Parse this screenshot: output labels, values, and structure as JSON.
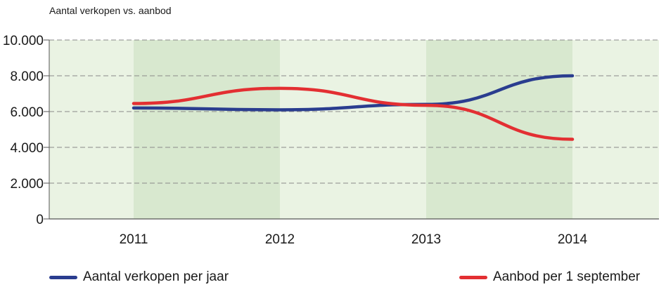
{
  "chart_data": {
    "type": "line",
    "title": "Aantal verkopen vs. aanbod",
    "xlabel": "",
    "ylabel": "",
    "categories": [
      "2011",
      "2012",
      "2013",
      "2014"
    ],
    "ylim": [
      0,
      10000
    ],
    "yticks": [
      0,
      2000,
      4000,
      6000,
      8000,
      10000
    ],
    "ytick_labels": [
      "0",
      "2.000",
      "4.000",
      "6.000",
      "8.000",
      "10.000"
    ],
    "grid": "horizontal dashed",
    "legend_position": "bottom",
    "series": [
      {
        "name": "Aantal verkopen per jaar",
        "color": "#2a3d8f",
        "values": [
          6200,
          6100,
          6400,
          8000
        ]
      },
      {
        "name": "Aanbod per 1 september",
        "color": "#e32f32",
        "values": [
          6450,
          7300,
          6350,
          4450
        ]
      }
    ],
    "band_colors": [
      "#eaf3e3",
      "#d8e8cf"
    ]
  }
}
